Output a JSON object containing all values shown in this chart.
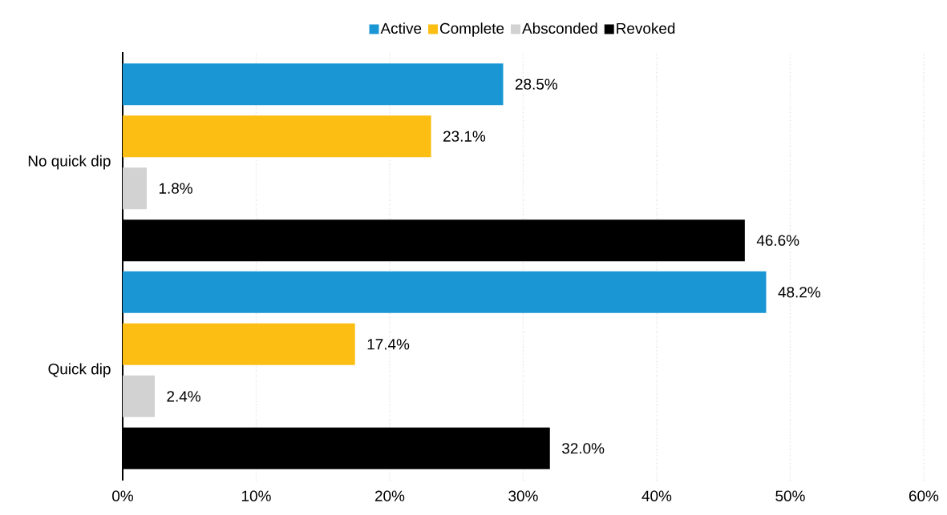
{
  "chart_data": {
    "type": "bar",
    "orientation": "horizontal",
    "categories": [
      "No quick dip",
      "Quick dip"
    ],
    "series": [
      {
        "name": "Active",
        "color": "#1a96d4",
        "values": [
          28.5,
          48.2
        ],
        "value_labels": [
          "28.5%",
          "48.2%"
        ]
      },
      {
        "name": "Complete",
        "color": "#fdbe14",
        "values": [
          23.1,
          17.4
        ],
        "value_labels": [
          "23.1%",
          "17.4%"
        ]
      },
      {
        "name": "Absconded",
        "color": "#d2d2d2",
        "values": [
          1.8,
          2.4
        ],
        "value_labels": [
          "1.8%",
          "2.4%"
        ]
      },
      {
        "name": "Revoked",
        "color": "#000000",
        "values": [
          46.6,
          32.0
        ],
        "value_labels": [
          "46.6%",
          "32.0%"
        ]
      }
    ],
    "xlim": [
      0,
      60
    ],
    "xticks": [
      {
        "value": 0,
        "label": "0%"
      },
      {
        "value": 10,
        "label": "10%"
      },
      {
        "value": 20,
        "label": "20%"
      },
      {
        "value": 30,
        "label": "30%"
      },
      {
        "value": 40,
        "label": "40%"
      },
      {
        "value": 50,
        "label": "50%"
      },
      {
        "value": 60,
        "label": "60%"
      }
    ],
    "grid": "x",
    "legend": "top"
  }
}
